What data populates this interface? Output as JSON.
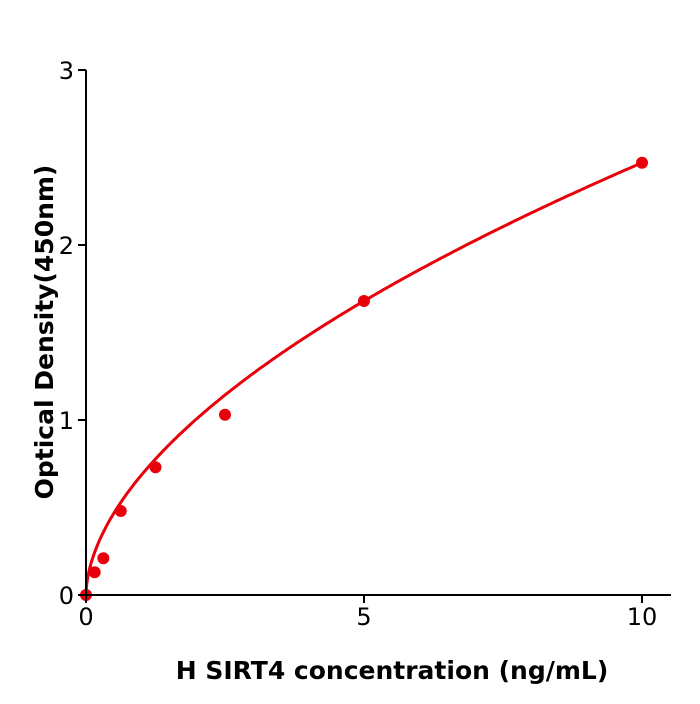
{
  "chart_data": {
    "type": "scatter",
    "title": "",
    "xlabel": "H  SIRT4 concentration (ng/mL)",
    "ylabel": "Optical Density(450nm)",
    "xlim": [
      0,
      10.5
    ],
    "ylim": [
      0,
      3
    ],
    "xticks": [
      "0",
      "5",
      "10"
    ],
    "xtick_values": [
      0,
      5,
      10
    ],
    "yticks": [
      "0",
      "1",
      "2",
      "3"
    ],
    "ytick_values": [
      0,
      1,
      2,
      3
    ],
    "grid": false,
    "color": "#e8000b",
    "points": {
      "x": [
        0,
        0.156,
        0.312,
        0.625,
        1.25,
        2.5,
        5,
        10
      ],
      "y": [
        0.0,
        0.13,
        0.21,
        0.48,
        0.73,
        1.03,
        1.68,
        2.47
      ]
    },
    "fit_curve": true
  }
}
